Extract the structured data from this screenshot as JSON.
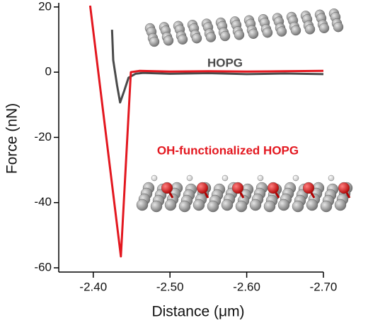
{
  "chart_data": {
    "type": "line",
    "x_label": "Distance (μm)",
    "y_label": "Force (nN)",
    "xlim": [
      -2.355,
      -2.7
    ],
    "ylim": [
      -61.3,
      20.4
    ],
    "xticks": [
      {
        "value": -2.4,
        "label": "-2.40"
      },
      {
        "value": -2.5,
        "label": "-2.50"
      },
      {
        "value": -2.6,
        "label": "-2.60"
      },
      {
        "value": -2.7,
        "label": "-2.70"
      }
    ],
    "yticks": [
      20,
      0,
      -20,
      -40,
      -60
    ],
    "series": [
      {
        "name": "HOPG",
        "color": "#4a4a4a",
        "x": [
          -2.4245,
          -2.426,
          -2.431,
          -2.435,
          -2.44,
          -2.446,
          -2.455,
          -2.465,
          -2.5,
          -2.55,
          -2.6,
          -2.65,
          -2.7
        ],
        "values": [
          13,
          3.7,
          -4,
          -9.3,
          -6,
          -1.7,
          -0.5,
          -0.2,
          -0.5,
          -0.3,
          -0.6,
          -0.4,
          -0.6
        ]
      },
      {
        "name": "OH-functionalized HOPG",
        "color": "#e3171f",
        "x": [
          -2.396,
          -2.436,
          -2.449,
          -2.46,
          -2.5,
          -2.55,
          -2.6,
          -2.65,
          -2.7
        ],
        "values": [
          20.4,
          -56.5,
          0,
          0.4,
          0.2,
          0.3,
          0.2,
          0.3,
          0.4
        ]
      }
    ]
  }
}
